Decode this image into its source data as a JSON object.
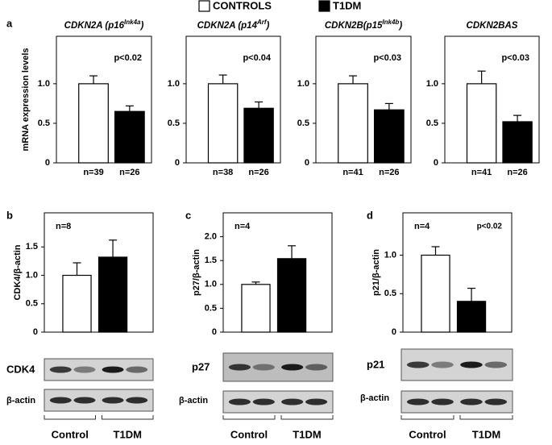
{
  "legend": [
    {
      "name": "CONTROLS",
      "color": "#ffffff"
    },
    {
      "name": "T1DM",
      "color": "#000000"
    }
  ],
  "panels": [
    "a",
    "b",
    "c",
    "d"
  ],
  "chart_data": [
    {
      "type": "bar",
      "title": [
        {
          "text": "CDKN2A (p16"
        },
        {
          "text": "Ink4a",
          "sup": true
        },
        {
          "text": ")"
        }
      ],
      "ylabel": "mRNA expression levels",
      "categories": [
        "n=39",
        "n=26"
      ],
      "values": [
        1.0,
        0.65
      ],
      "errors": [
        0.1,
        0.07
      ],
      "colors": [
        "#ffffff",
        "#000000"
      ],
      "ylim": [
        0,
        1.6
      ],
      "yticks": [
        0,
        0.5,
        {
          "value": 1,
          "label": "1.0"
        }
      ],
      "annotations": [
        {
          "text": "p<0.02",
          "position": "top-right"
        }
      ]
    },
    {
      "type": "bar",
      "title": [
        {
          "text": "CDKN2A (p14"
        },
        {
          "text": "Arf",
          "sup": true
        },
        {
          "text": ")"
        }
      ],
      "categories": [
        "n=38",
        "n=26"
      ],
      "values": [
        1.0,
        0.69
      ],
      "errors": [
        0.11,
        0.08
      ],
      "colors": [
        "#ffffff",
        "#000000"
      ],
      "ylim": [
        0,
        1.6
      ],
      "yticks": [
        0,
        0.5,
        {
          "value": 1,
          "label": "1.0"
        }
      ],
      "annotations": [
        {
          "text": "p<0.04",
          "position": "top-right"
        }
      ]
    },
    {
      "type": "bar",
      "title": [
        {
          "text": "CDKN2B(p15"
        },
        {
          "text": "Ink4b",
          "sup": true
        },
        {
          "text": ")"
        }
      ],
      "categories": [
        "n=41",
        "n=26"
      ],
      "values": [
        1.0,
        0.67
      ],
      "errors": [
        0.1,
        0.08
      ],
      "colors": [
        "#ffffff",
        "#000000"
      ],
      "ylim": [
        0,
        1.6
      ],
      "yticks": [
        0,
        0.5,
        {
          "value": 1,
          "label": "1.0"
        }
      ],
      "annotations": [
        {
          "text": "p<0.03",
          "position": "top-right"
        }
      ]
    },
    {
      "type": "bar",
      "title": [
        {
          "text": "CDKN2BAS"
        }
      ],
      "categories": [
        "n=41",
        "n=26"
      ],
      "values": [
        1.0,
        0.52
      ],
      "errors": [
        0.16,
        0.08
      ],
      "colors": [
        "#ffffff",
        "#000000"
      ],
      "ylim": [
        0,
        1.6
      ],
      "yticks": [
        0,
        0.5,
        {
          "value": 1,
          "label": "1.0"
        }
      ],
      "annotations": [
        {
          "text": "p<0.03",
          "position": "top-right"
        }
      ]
    },
    {
      "type": "bar",
      "ylabel": "CDK4/β-actin",
      "values": [
        1.0,
        1.32
      ],
      "errors": [
        0.22,
        0.3
      ],
      "colors": [
        "#ffffff",
        "#000000"
      ],
      "ylim": [
        0,
        2.1
      ],
      "yticks": [
        0,
        0.5,
        {
          "value": 1,
          "label": "1.0"
        },
        1.5
      ],
      "annotations": [
        {
          "text": "n=8",
          "position": "top-left"
        }
      ]
    },
    {
      "type": "bar",
      "ylabel": "p27/β-actin",
      "values": [
        1.0,
        1.54
      ],
      "errors": [
        0.05,
        0.27
      ],
      "colors": [
        "#ffffff",
        "#000000"
      ],
      "ylim": [
        0,
        2.5
      ],
      "yticks": [
        0,
        0.5,
        {
          "value": 1,
          "label": "1.0"
        },
        1.5,
        {
          "value": 2,
          "label": "2.0"
        }
      ],
      "annotations": [
        {
          "text": "n=4",
          "position": "top-left"
        }
      ]
    },
    {
      "type": "bar",
      "ylabel": "p21/β-actin",
      "values": [
        1.0,
        0.4
      ],
      "errors": [
        0.11,
        0.17
      ],
      "colors": [
        "#ffffff",
        "#000000"
      ],
      "ylim": [
        0,
        1.55
      ],
      "yticks": [
        0,
        0.5,
        {
          "value": 1,
          "label": "1.0"
        }
      ],
      "annotations": [
        {
          "text": "n=4",
          "position": "top-left"
        },
        {
          "text": "p<0.02",
          "position": "top-right"
        }
      ]
    }
  ],
  "blots": [
    {
      "labels": [
        "CDK4",
        "β-actin"
      ],
      "groups": [
        "Control",
        "T1DM"
      ]
    },
    {
      "labels": [
        "p27",
        "β-actin"
      ],
      "groups": [
        "Control",
        "T1DM"
      ]
    },
    {
      "labels": [
        "p21",
        "β-actin"
      ],
      "groups": [
        "Control",
        "T1DM"
      ]
    }
  ]
}
